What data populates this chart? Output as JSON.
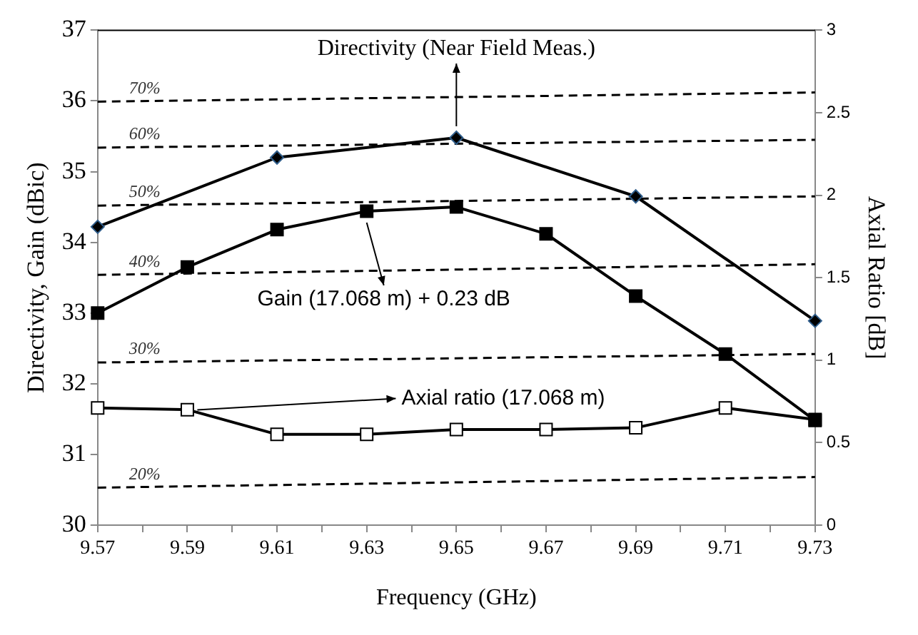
{
  "chart_data": {
    "type": "line",
    "xlabel": "Frequency (GHz)",
    "ylabel": "Directivity, Gain (dBic)",
    "y2label": "Axial Ratio [dB]",
    "x": [
      9.57,
      9.59,
      9.61,
      9.63,
      9.65,
      9.67,
      9.69,
      9.71,
      9.73
    ],
    "series": [
      {
        "color": "#000000",
        "marker": "diamond",
        "values": [
          34.22,
          null,
          35.2,
          null,
          35.48,
          null,
          34.65,
          null,
          32.89
        ]
      },
      {
        "color": "#000000",
        "marker": "square",
        "values": [
          33.0,
          33.65,
          34.18,
          34.44,
          34.5,
          34.12,
          33.24,
          32.42,
          31.48
        ]
      },
      {
        "color": "#000000",
        "marker": "square",
        "axis": "y2",
        "values": [
          0.71,
          0.7,
          0.55,
          0.55,
          0.58,
          0.58,
          0.59,
          0.71,
          0.64
        ]
      },
      {
        "name": "70%",
        "color": "#000000",
        "marker": "none",
        "line_style": "dashed",
        "values": [
          35.99,
          null,
          null,
          null,
          null,
          null,
          null,
          null,
          36.12
        ]
      },
      {
        "name": "60%",
        "color": "#000000",
        "marker": "none",
        "line_style": "dashed",
        "values": [
          35.34,
          null,
          null,
          null,
          null,
          null,
          null,
          null,
          35.45
        ]
      },
      {
        "name": "50%",
        "color": "#000000",
        "marker": "none",
        "line_style": "dashed",
        "values": [
          34.52,
          null,
          null,
          null,
          null,
          null,
          null,
          null,
          34.65
        ]
      },
      {
        "name": "40%",
        "color": "#000000",
        "marker": "none",
        "line_style": "dashed",
        "values": [
          33.54,
          null,
          null,
          null,
          null,
          null,
          null,
          null,
          33.69
        ]
      },
      {
        "name": "30%",
        "color": "#000000",
        "marker": "none",
        "line_style": "dashed",
        "values": [
          32.3,
          null,
          null,
          null,
          null,
          null,
          null,
          null,
          32.42
        ]
      },
      {
        "name": "20%",
        "color": "#000000",
        "marker": "none",
        "line_style": "dashed",
        "values": [
          30.53,
          null,
          null,
          null,
          null,
          null,
          null,
          null,
          30.68
        ]
      }
    ],
    "annotations": [
      {
        "text": "Directivity (Near Field Meas.)",
        "x": 9.65,
        "y": 35.48
      },
      {
        "text": "Gain (17.068 m) + 0.23 dB",
        "x": 9.63,
        "y": 34.44
      },
      {
        "text": "Axial ratio (17.068 m)",
        "x": 9.59,
        "y": 31.63
      }
    ],
    "xlim": [
      9.57,
      9.73
    ],
    "xticks": [
      9.57,
      {
        "value": 9.58,
        "label": null
      },
      9.59,
      {
        "value": 9.6,
        "label": null
      },
      9.61,
      {
        "value": 9.62,
        "label": null
      },
      9.63,
      {
        "value": 9.64,
        "label": null
      },
      9.65,
      {
        "value": 9.66,
        "label": null
      },
      9.67,
      {
        "value": 9.68,
        "label": null
      },
      9.69,
      {
        "value": 9.7,
        "label": null
      },
      9.71,
      {
        "value": 9.72,
        "label": null
      },
      9.73
    ],
    "ylim": [
      30,
      37
    ],
    "yticks": [
      30,
      31,
      32,
      33,
      34,
      35,
      36,
      37
    ],
    "y2lim": [
      0,
      3
    ],
    "y2ticks": [
      0,
      0.5,
      1,
      1.5,
      2,
      2.5,
      3
    ],
    "grid": false,
    "legend": false
  }
}
